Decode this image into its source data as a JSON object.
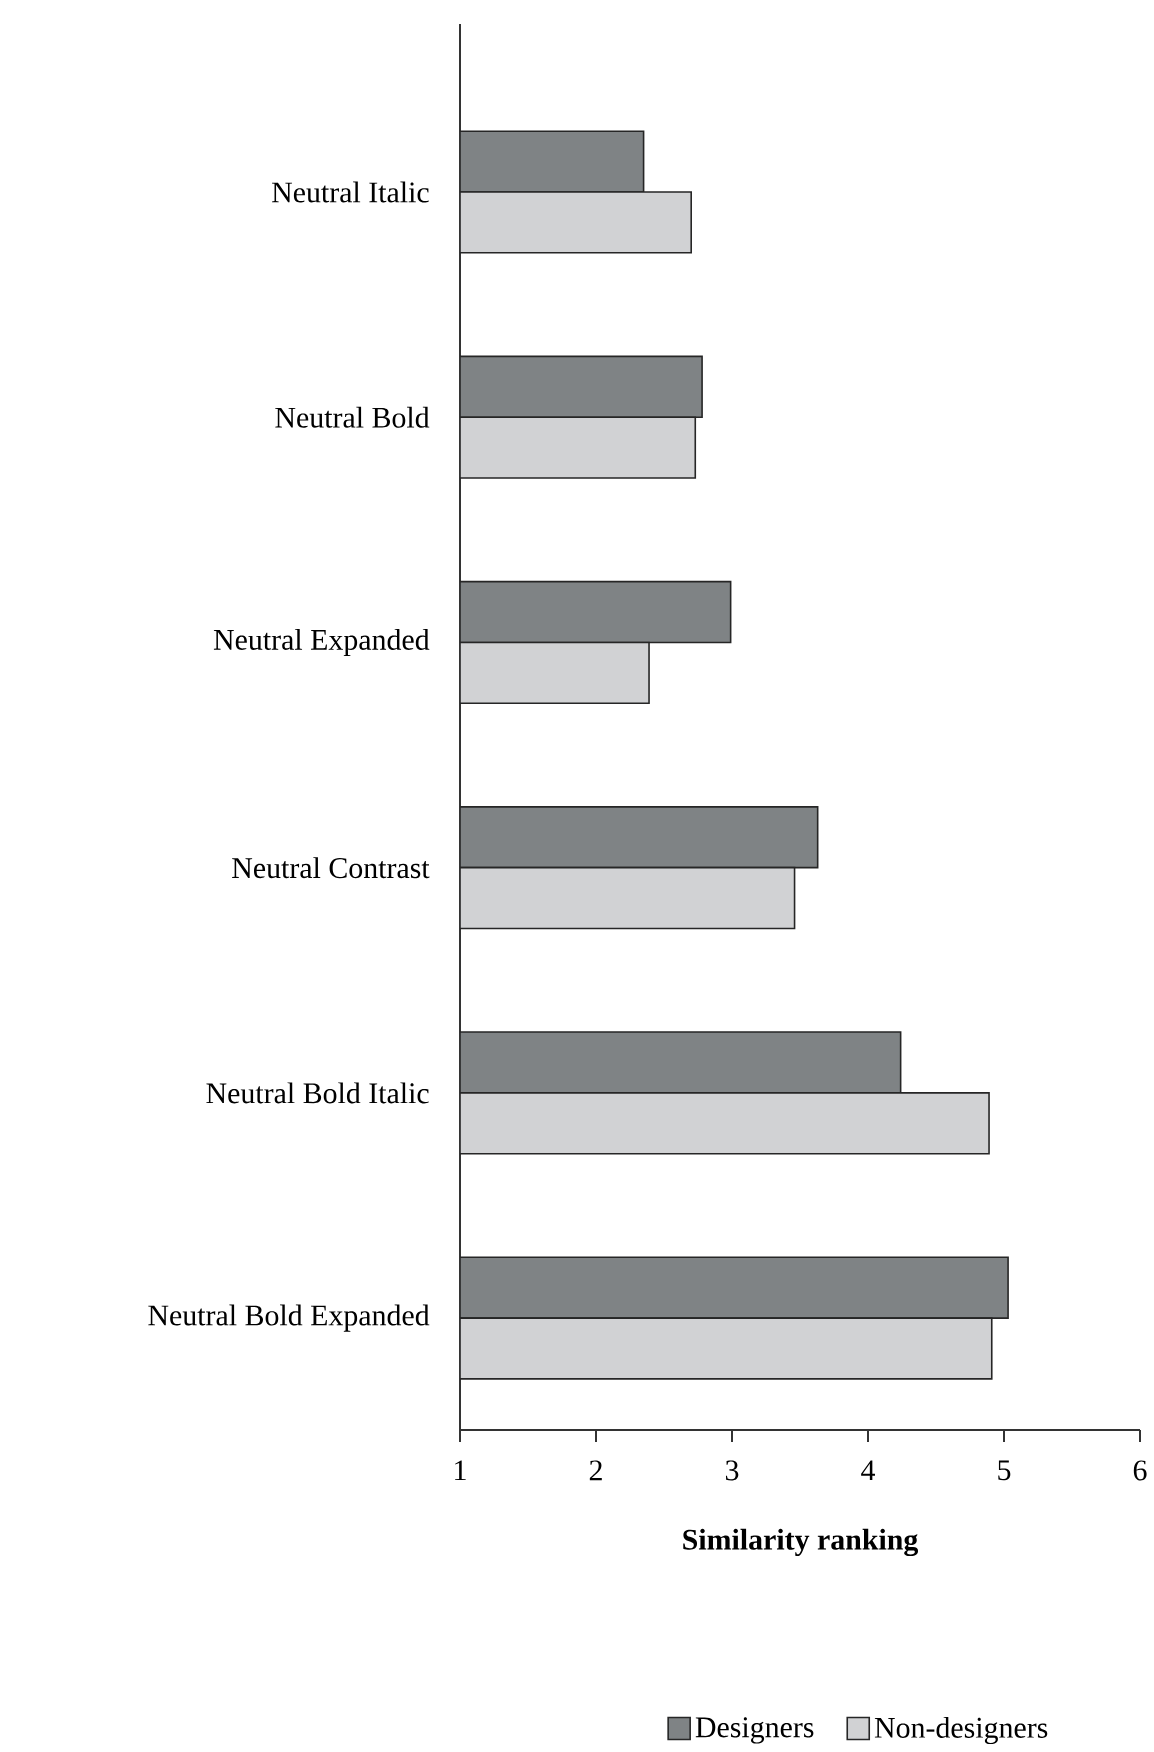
{
  "chart_data": {
    "type": "bar",
    "orientation": "horizontal",
    "xlabel": "Similarity ranking",
    "categories": [
      "Neutral Italic",
      "Neutral Bold",
      "Neutral Expanded",
      "Neutral Contrast",
      "Neutral Bold Italic",
      "Neutral Bold Expanded"
    ],
    "series": [
      {
        "name": "Designers",
        "color": "#7f8385",
        "values": [
          2.35,
          2.78,
          2.99,
          3.63,
          4.24,
          5.03
        ]
      },
      {
        "name": "Non-designers",
        "color": "#d1d2d4",
        "values": [
          2.7,
          2.73,
          2.39,
          3.46,
          4.89,
          4.91
        ]
      }
    ],
    "xlim": [
      1,
      6
    ],
    "xticks": [
      1,
      2,
      3,
      4,
      5,
      6
    ],
    "legend": "bottom"
  }
}
